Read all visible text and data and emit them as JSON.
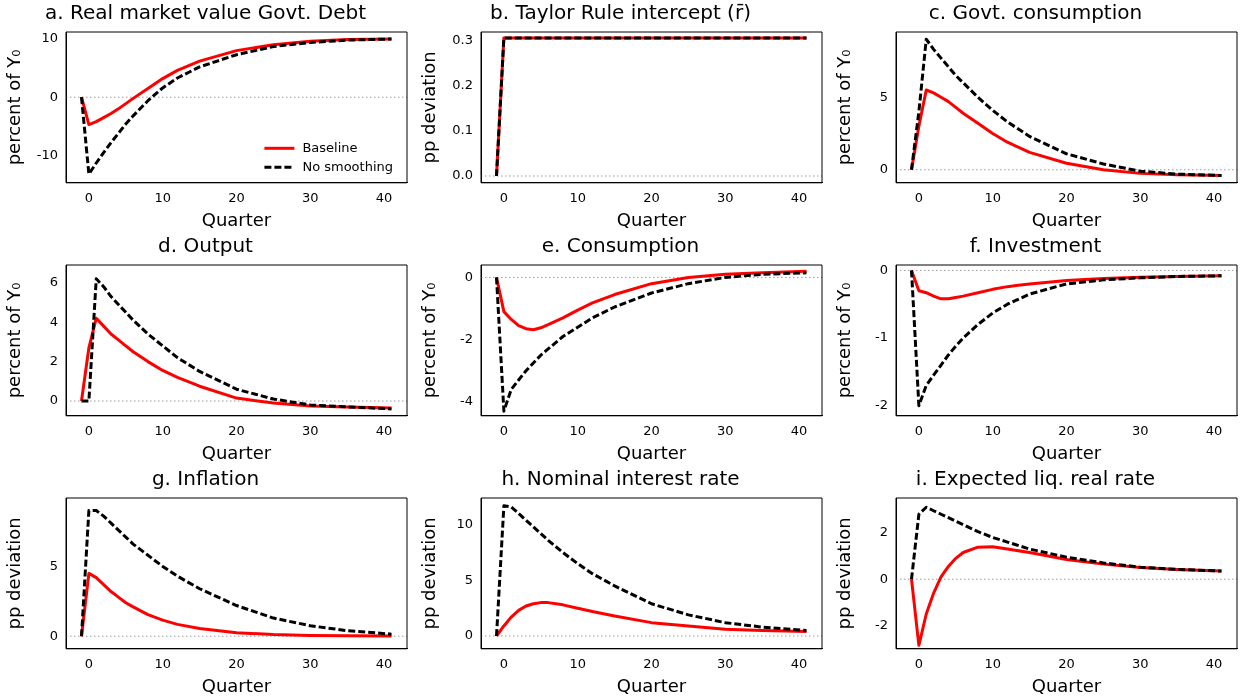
{
  "chart_data": [
    {
      "type": "line",
      "title": "a. Real market value Govt. Debt",
      "xlabel": "Quarter",
      "ylabel": "percent of Y₀",
      "x": [
        -1,
        0,
        1,
        2,
        3,
        4,
        5,
        6,
        8,
        10,
        12,
        15,
        20,
        25,
        30,
        35,
        41
      ],
      "xlim": [
        -3.1,
        43.1
      ],
      "xticks": [
        0,
        10,
        20,
        30,
        40
      ],
      "ylim": [
        -14.7,
        11.2
      ],
      "yticks": [
        -10,
        0,
        10
      ],
      "grid": false,
      "legend": "bottom right",
      "series": [
        {
          "name": "Baseline",
          "color": "#ff0000",
          "line_style": "solid",
          "values": [
            0,
            -4.7,
            -4.2,
            -3.5,
            -2.8,
            -2.0,
            -1.1,
            -0.2,
            1.5,
            3.2,
            4.6,
            6.2,
            8.0,
            9.0,
            9.6,
            9.9,
            10.0
          ]
        },
        {
          "name": "No smoothing",
          "color": "#000000",
          "line_style": "dashed",
          "values": [
            0,
            -13.2,
            -11.3,
            -9.5,
            -7.8,
            -6.2,
            -4.6,
            -3.2,
            -0.6,
            1.6,
            3.3,
            5.2,
            7.3,
            8.7,
            9.4,
            9.8,
            10.0
          ]
        }
      ],
      "ref_lines": [
        {
          "axis": "y",
          "value": 0,
          "color": "#808080",
          "line_style": "dotted"
        }
      ]
    },
    {
      "type": "line",
      "title": "b. Taylor Rule intercept (r̄)",
      "xlabel": "Quarter",
      "ylabel": "pp deviation",
      "x": [
        -1,
        0,
        1,
        2,
        3,
        4,
        5,
        6,
        8,
        10,
        12,
        15,
        20,
        25,
        30,
        35,
        41
      ],
      "xlim": [
        -3.1,
        43.1
      ],
      "xticks": [
        0,
        10,
        20,
        30,
        40
      ],
      "ylim": [
        -0.015,
        0.318
      ],
      "yticks": [
        {
          "value": 0,
          "label": "0.0"
        },
        0.1,
        0.2,
        0.3
      ],
      "grid": false,
      "legend": false,
      "series": [
        {
          "color": "#ff0000",
          "line_style": "solid",
          "values": [
            0,
            0.305,
            0.305,
            0.305,
            0.305,
            0.305,
            0.305,
            0.305,
            0.305,
            0.305,
            0.305,
            0.305,
            0.305,
            0.305,
            0.305,
            0.305,
            0.305
          ]
        },
        {
          "color": "#000000",
          "line_style": "dashed",
          "values": [
            0,
            0.305,
            0.305,
            0.305,
            0.305,
            0.305,
            0.305,
            0.305,
            0.305,
            0.305,
            0.305,
            0.305,
            0.305,
            0.305,
            0.305,
            0.305,
            0.305
          ]
        }
      ],
      "ref_lines": [
        {
          "axis": "y",
          "value": 0,
          "color": "#808080",
          "line_style": "dotted"
        }
      ]
    },
    {
      "type": "line",
      "title": "c. Govt. consumption",
      "xlabel": "Quarter",
      "ylabel": "percent of Y₀",
      "x": [
        -1,
        0,
        1,
        2,
        3,
        4,
        5,
        6,
        8,
        10,
        12,
        15,
        20,
        25,
        30,
        35,
        41
      ],
      "xlim": [
        -3.1,
        43.1
      ],
      "xticks": [
        0,
        10,
        20,
        30,
        40
      ],
      "ylim": [
        -0.9,
        9.5
      ],
      "yticks": [
        0,
        5
      ],
      "grid": false,
      "legend": false,
      "series": [
        {
          "color": "#ff0000",
          "line_style": "solid",
          "values": [
            0,
            3.0,
            5.5,
            5.3,
            5.0,
            4.7,
            4.3,
            3.9,
            3.2,
            2.5,
            1.9,
            1.2,
            0.45,
            0.0,
            -0.25,
            -0.35,
            -0.4
          ]
        },
        {
          "color": "#000000",
          "line_style": "dashed",
          "values": [
            0,
            4.0,
            9.0,
            8.3,
            7.7,
            7.1,
            6.5,
            6.0,
            5.0,
            4.1,
            3.3,
            2.3,
            1.1,
            0.4,
            -0.1,
            -0.3,
            -0.4
          ]
        }
      ],
      "ref_lines": [
        {
          "axis": "y",
          "value": 0,
          "color": "#808080",
          "line_style": "dotted"
        }
      ]
    },
    {
      "type": "line",
      "title": "d. Output",
      "xlabel": "Quarter",
      "ylabel": "percent of Y₀",
      "x": [
        -1,
        0,
        1,
        2,
        3,
        4,
        5,
        6,
        8,
        10,
        12,
        15,
        20,
        25,
        30,
        35,
        41
      ],
      "xlim": [
        -3.1,
        43.1
      ],
      "xticks": [
        0,
        10,
        20,
        30,
        40
      ],
      "ylim": [
        -0.75,
        6.9
      ],
      "yticks": [
        0,
        2,
        4,
        6
      ],
      "grid": false,
      "legend": false,
      "series": [
        {
          "color": "#ff0000",
          "line_style": "solid",
          "values": [
            0,
            2.7,
            4.2,
            3.8,
            3.4,
            3.1,
            2.8,
            2.5,
            2.0,
            1.55,
            1.2,
            0.75,
            0.15,
            -0.1,
            -0.25,
            -0.3,
            -0.35
          ]
        },
        {
          "color": "#000000",
          "line_style": "dashed",
          "values": [
            0,
            0,
            6.2,
            5.8,
            5.3,
            4.9,
            4.5,
            4.1,
            3.4,
            2.8,
            2.2,
            1.5,
            0.6,
            0.1,
            -0.2,
            -0.3,
            -0.4
          ]
        }
      ],
      "ref_lines": [
        {
          "axis": "y",
          "value": 0,
          "color": "#808080",
          "line_style": "dotted"
        }
      ]
    },
    {
      "type": "line",
      "title": "e. Consumption",
      "xlabel": "Quarter",
      "ylabel": "percent of Y₀",
      "x": [
        -1,
        0,
        1,
        2,
        3,
        4,
        5,
        6,
        8,
        10,
        12,
        15,
        20,
        25,
        30,
        35,
        41
      ],
      "xlim": [
        -3.1,
        43.1
      ],
      "xticks": [
        0,
        10,
        20,
        30,
        40
      ],
      "ylim": [
        -4.45,
        0.4
      ],
      "yticks": [
        -4,
        -2,
        0
      ],
      "grid": false,
      "legend": false,
      "series": [
        {
          "color": "#ff0000",
          "line_style": "solid",
          "values": [
            0,
            -1.1,
            -1.35,
            -1.55,
            -1.65,
            -1.68,
            -1.62,
            -1.52,
            -1.3,
            -1.05,
            -0.82,
            -0.55,
            -0.2,
            0.0,
            0.1,
            0.15,
            0.2
          ]
        },
        {
          "color": "#000000",
          "line_style": "dashed",
          "values": [
            0,
            -4.3,
            -3.6,
            -3.3,
            -3.0,
            -2.75,
            -2.5,
            -2.3,
            -1.9,
            -1.6,
            -1.3,
            -0.95,
            -0.5,
            -0.2,
            0.0,
            0.1,
            0.15
          ]
        }
      ],
      "ref_lines": [
        {
          "axis": "y",
          "value": 0,
          "color": "#808080",
          "line_style": "dotted"
        }
      ]
    },
    {
      "type": "line",
      "title": "f. Investment",
      "xlabel": "Quarter",
      "ylabel": "percent of Y₀",
      "x": [
        -1,
        0,
        1,
        2,
        3,
        4,
        5,
        6,
        8,
        10,
        12,
        15,
        20,
        25,
        30,
        35,
        41
      ],
      "xlim": [
        -3.1,
        43.1
      ],
      "xticks": [
        0,
        10,
        20,
        30,
        40
      ],
      "ylim": [
        -2.15,
        0.08
      ],
      "yticks": [
        -2,
        -1,
        0
      ],
      "grid": false,
      "legend": false,
      "series": [
        {
          "color": "#ff0000",
          "line_style": "solid",
          "values": [
            0,
            -0.3,
            -0.33,
            -0.38,
            -0.42,
            -0.42,
            -0.4,
            -0.38,
            -0.33,
            -0.28,
            -0.24,
            -0.2,
            -0.15,
            -0.12,
            -0.1,
            -0.09,
            -0.08
          ]
        },
        {
          "color": "#000000",
          "line_style": "dashed",
          "values": [
            0,
            -2.0,
            -1.7,
            -1.55,
            -1.4,
            -1.25,
            -1.12,
            -1.0,
            -0.8,
            -0.63,
            -0.5,
            -0.35,
            -0.2,
            -0.14,
            -0.11,
            -0.09,
            -0.08
          ]
        }
      ],
      "ref_lines": [
        {
          "axis": "y",
          "value": 0,
          "color": "#808080",
          "line_style": "dotted"
        }
      ]
    },
    {
      "type": "line",
      "title": "g. Inflation",
      "xlabel": "Quarter",
      "ylabel": "pp deviation",
      "x": [
        -1,
        0,
        1,
        2,
        3,
        4,
        5,
        6,
        8,
        10,
        12,
        15,
        20,
        25,
        30,
        35,
        41
      ],
      "xlim": [
        -3.1,
        43.1
      ],
      "xticks": [
        0,
        10,
        20,
        30,
        40
      ],
      "ylim": [
        -0.9,
        9.9
      ],
      "yticks": [
        0,
        5
      ],
      "grid": false,
      "legend": false,
      "series": [
        {
          "color": "#ff0000",
          "line_style": "solid",
          "values": [
            0,
            4.5,
            4.2,
            3.7,
            3.2,
            2.8,
            2.4,
            2.1,
            1.55,
            1.15,
            0.85,
            0.55,
            0.25,
            0.12,
            0.06,
            0.03,
            0.02
          ]
        },
        {
          "color": "#000000",
          "line_style": "dashed",
          "values": [
            0,
            9.0,
            9.0,
            8.6,
            8.1,
            7.6,
            7.1,
            6.6,
            5.8,
            5.0,
            4.3,
            3.4,
            2.2,
            1.3,
            0.75,
            0.4,
            0.15
          ]
        }
      ],
      "ref_lines": [
        {
          "axis": "y",
          "value": 0,
          "color": "#808080",
          "line_style": "dotted"
        }
      ]
    },
    {
      "type": "line",
      "title": "h. Nominal interest rate",
      "xlabel": "Quarter",
      "ylabel": "pp deviation",
      "x": [
        -1,
        0,
        1,
        2,
        3,
        4,
        5,
        6,
        8,
        10,
        12,
        15,
        20,
        25,
        30,
        35,
        41
      ],
      "xlim": [
        -3.1,
        43.1
      ],
      "xticks": [
        0,
        10,
        20,
        30,
        40
      ],
      "ylim": [
        -1.15,
        12.4
      ],
      "yticks": [
        0,
        5,
        10
      ],
      "grid": false,
      "legend": false,
      "series": [
        {
          "color": "#ff0000",
          "line_style": "solid",
          "values": [
            0,
            0.9,
            1.7,
            2.3,
            2.7,
            2.9,
            3.0,
            3.0,
            2.8,
            2.5,
            2.2,
            1.8,
            1.2,
            0.9,
            0.6,
            0.5,
            0.4
          ]
        },
        {
          "color": "#000000",
          "line_style": "dashed",
          "values": [
            0,
            11.7,
            11.6,
            11.0,
            10.4,
            9.8,
            9.2,
            8.6,
            7.5,
            6.5,
            5.6,
            4.5,
            2.9,
            1.9,
            1.2,
            0.8,
            0.5
          ]
        }
      ],
      "ref_lines": [
        {
          "axis": "y",
          "value": 0,
          "color": "#808080",
          "line_style": "dotted"
        }
      ]
    },
    {
      "type": "line",
      "title": "i. Expected liq. real rate",
      "xlabel": "Quarter",
      "ylabel": "pp deviation",
      "x": [
        -1,
        0,
        1,
        2,
        3,
        4,
        5,
        6,
        8,
        10,
        12,
        15,
        20,
        25,
        30,
        35,
        41
      ],
      "xlim": [
        -3.1,
        43.1
      ],
      "xticks": [
        0,
        10,
        20,
        30,
        40
      ],
      "ylim": [
        -3.0,
        3.5
      ],
      "yticks": [
        -2,
        0,
        2
      ],
      "grid": false,
      "legend": false,
      "series": [
        {
          "color": "#ff0000",
          "line_style": "solid",
          "values": [
            0,
            -2.85,
            -1.5,
            -0.6,
            0.1,
            0.55,
            0.9,
            1.15,
            1.38,
            1.4,
            1.3,
            1.15,
            0.85,
            0.65,
            0.5,
            0.42,
            0.35
          ]
        },
        {
          "color": "#000000",
          "line_style": "dashed",
          "values": [
            0,
            2.8,
            3.1,
            2.95,
            2.8,
            2.65,
            2.5,
            2.35,
            2.05,
            1.8,
            1.6,
            1.3,
            0.95,
            0.7,
            0.52,
            0.42,
            0.35
          ]
        }
      ],
      "ref_lines": [
        {
          "axis": "y",
          "value": 0,
          "color": "#808080",
          "line_style": "dotted"
        }
      ]
    }
  ]
}
